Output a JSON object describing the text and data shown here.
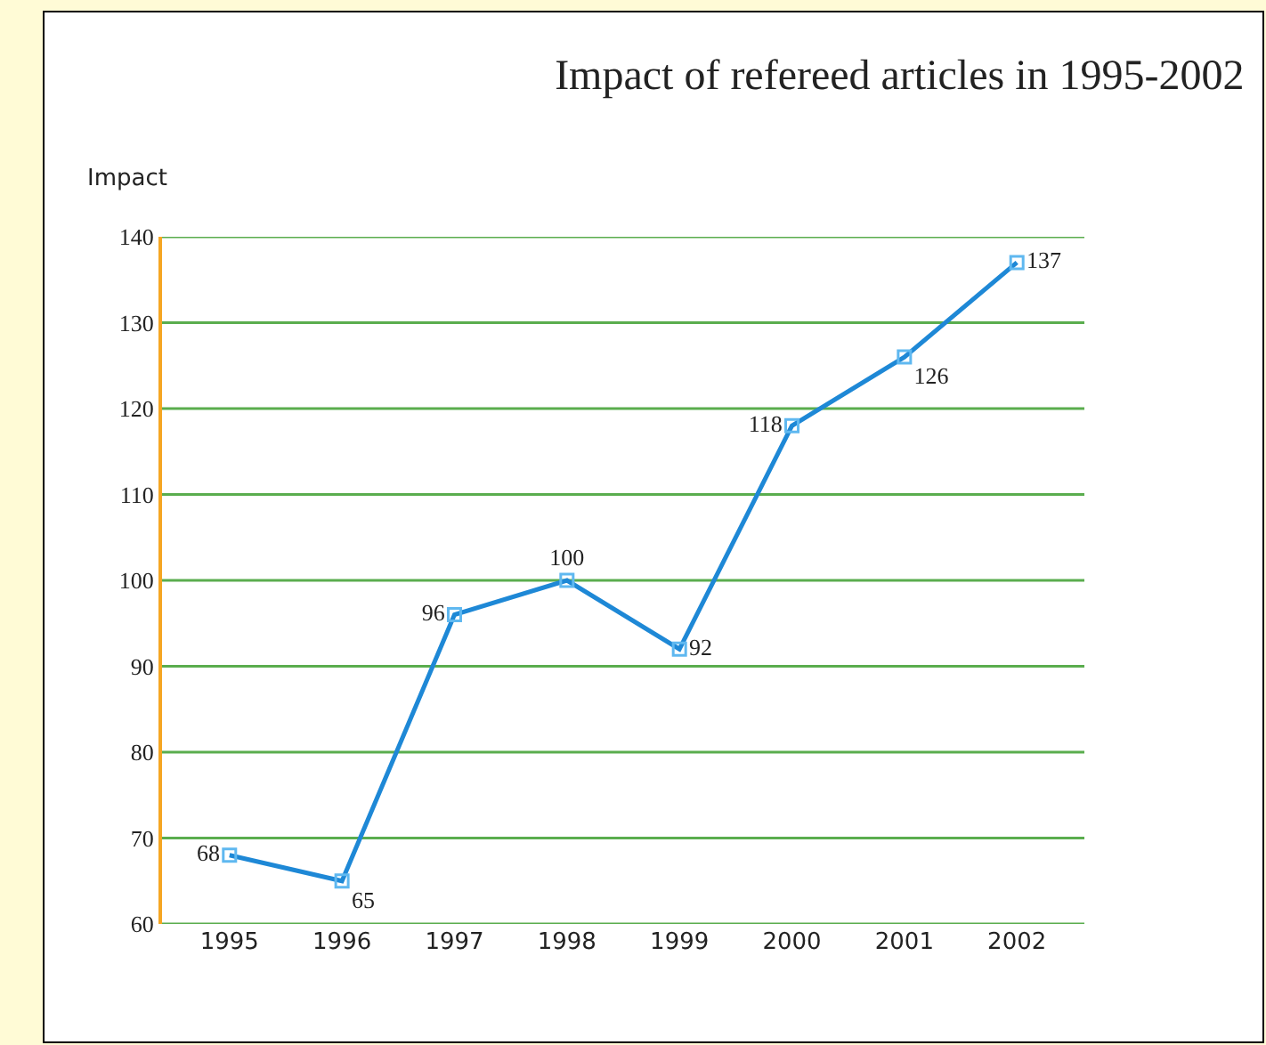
{
  "chart_data": {
    "type": "line",
    "title": "Impact of refereed articles in 1995-2002",
    "ylabel": "Impact",
    "categories": [
      "1995",
      "1996",
      "1997",
      "1998",
      "1999",
      "2000",
      "2001",
      "2002"
    ],
    "series": [
      {
        "color": "#1e88d6",
        "values": [
          68,
          65,
          96,
          100,
          92,
          118,
          126,
          137
        ]
      }
    ],
    "ylim": [
      60,
      140
    ],
    "yticks": [
      60,
      70,
      80,
      90,
      100,
      110,
      120,
      130,
      140
    ],
    "grid": "y",
    "marker": "square",
    "line_style": "solid",
    "data_labels": true
  }
}
